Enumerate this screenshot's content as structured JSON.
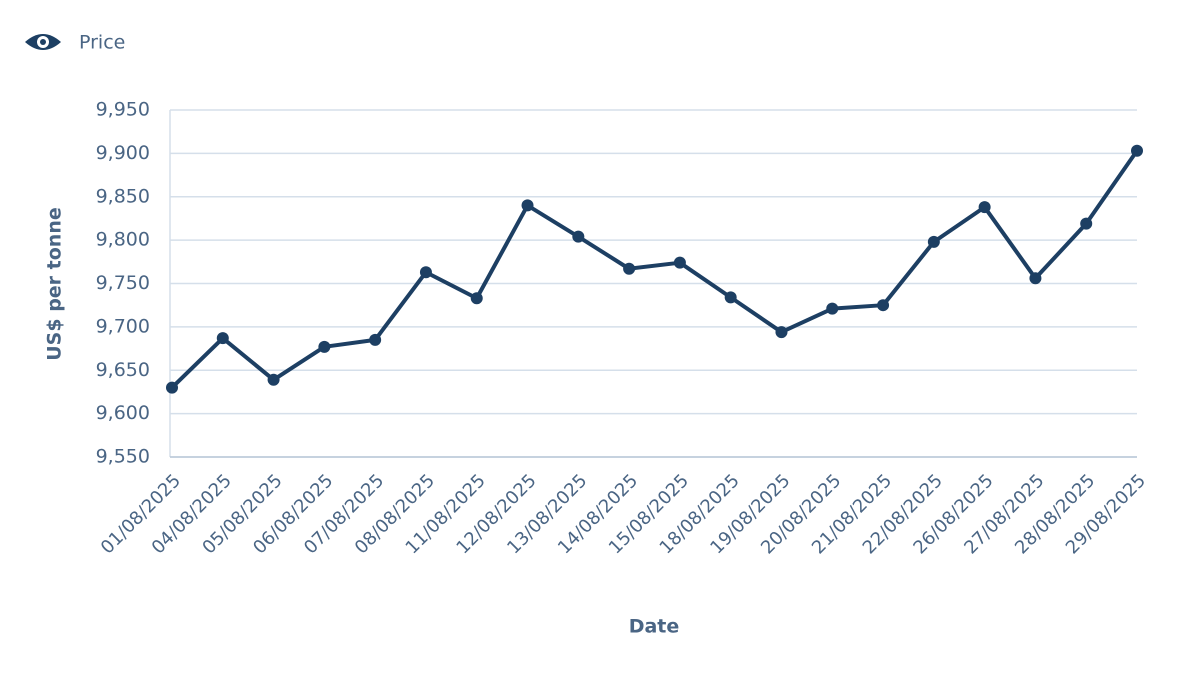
{
  "chart_data": {
    "type": "line",
    "legend": "Price",
    "xlabel": "Date",
    "ylabel": "US$ per tonne",
    "categories": [
      "01/08/2025",
      "04/08/2025",
      "05/08/2025",
      "06/08/2025",
      "07/08/2025",
      "08/08/2025",
      "11/08/2025",
      "12/08/2025",
      "13/08/2025",
      "14/08/2025",
      "15/08/2025",
      "18/08/2025",
      "19/08/2025",
      "20/08/2025",
      "21/08/2025",
      "22/08/2025",
      "26/08/2025",
      "27/08/2025",
      "28/08/2025",
      "29/08/2025"
    ],
    "series": [
      {
        "name": "Price",
        "color": "#1d3f63",
        "values": [
          9630,
          9687,
          9639,
          9677,
          9685,
          9763,
          9733,
          9840,
          9804,
          9767,
          9774,
          9734,
          9694,
          9721,
          9725,
          9798,
          9838,
          9756,
          9819,
          9903
        ]
      }
    ],
    "ylim": [
      9550,
      9950
    ],
    "yticks": [
      {
        "value": 9550,
        "label": "9,550"
      },
      {
        "value": 9600,
        "label": "9,600"
      },
      {
        "value": 9650,
        "label": "9,650"
      },
      {
        "value": 9700,
        "label": "9,700"
      },
      {
        "value": 9750,
        "label": "9,750"
      },
      {
        "value": 9800,
        "label": "9,800"
      },
      {
        "value": 9850,
        "label": "9,850"
      },
      {
        "value": 9900,
        "label": "9,900"
      },
      {
        "value": 9950,
        "label": "9,950"
      }
    ],
    "grid": true
  }
}
